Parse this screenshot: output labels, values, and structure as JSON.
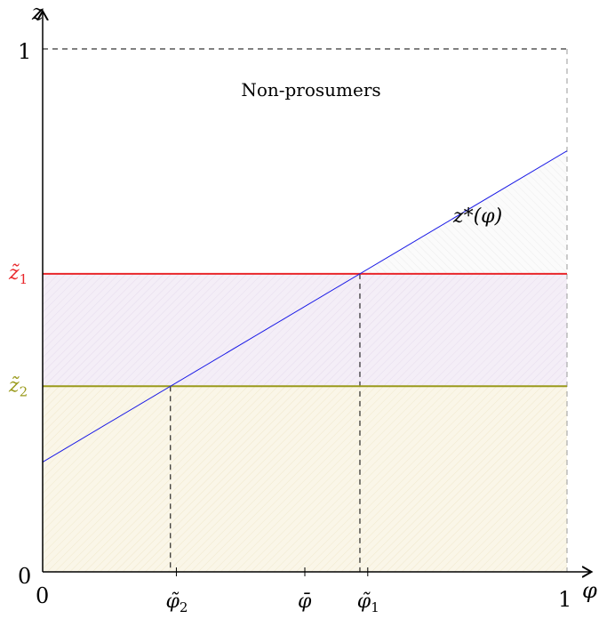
{
  "axes": {
    "x_symbol": "φ",
    "y_symbol": "z",
    "x_origin_label": "0",
    "x_end_label": "1",
    "y_origin_label": "0",
    "y_end_label": "1",
    "x_ticks": [
      {
        "id": "phi2",
        "label": "φ̃",
        "sub": "2",
        "value": 0.255
      },
      {
        "id": "phibar",
        "label": "φ̄",
        "sub": "",
        "value": 0.5
      },
      {
        "id": "phi1",
        "label": "φ̃",
        "sub": "1",
        "value": 0.62
      }
    ]
  },
  "lines": {
    "z1": {
      "label": "z̃",
      "sub": "1",
      "value": 0.57,
      "color": "#e8262a"
    },
    "z2": {
      "label": "z̃",
      "sub": "2",
      "value": 0.355,
      "color": "#9a9a1c"
    },
    "zstar": {
      "label": "z*(φ)",
      "intercept": 0.21,
      "slope": 0.595,
      "color": "#1a1ae6"
    }
  },
  "regions": {
    "top_label": "Non-prosumers",
    "purple_fill": "#efe6f3",
    "yellow_fill": "#f6efd5",
    "hatch_color": "#dcdcdc"
  }
}
